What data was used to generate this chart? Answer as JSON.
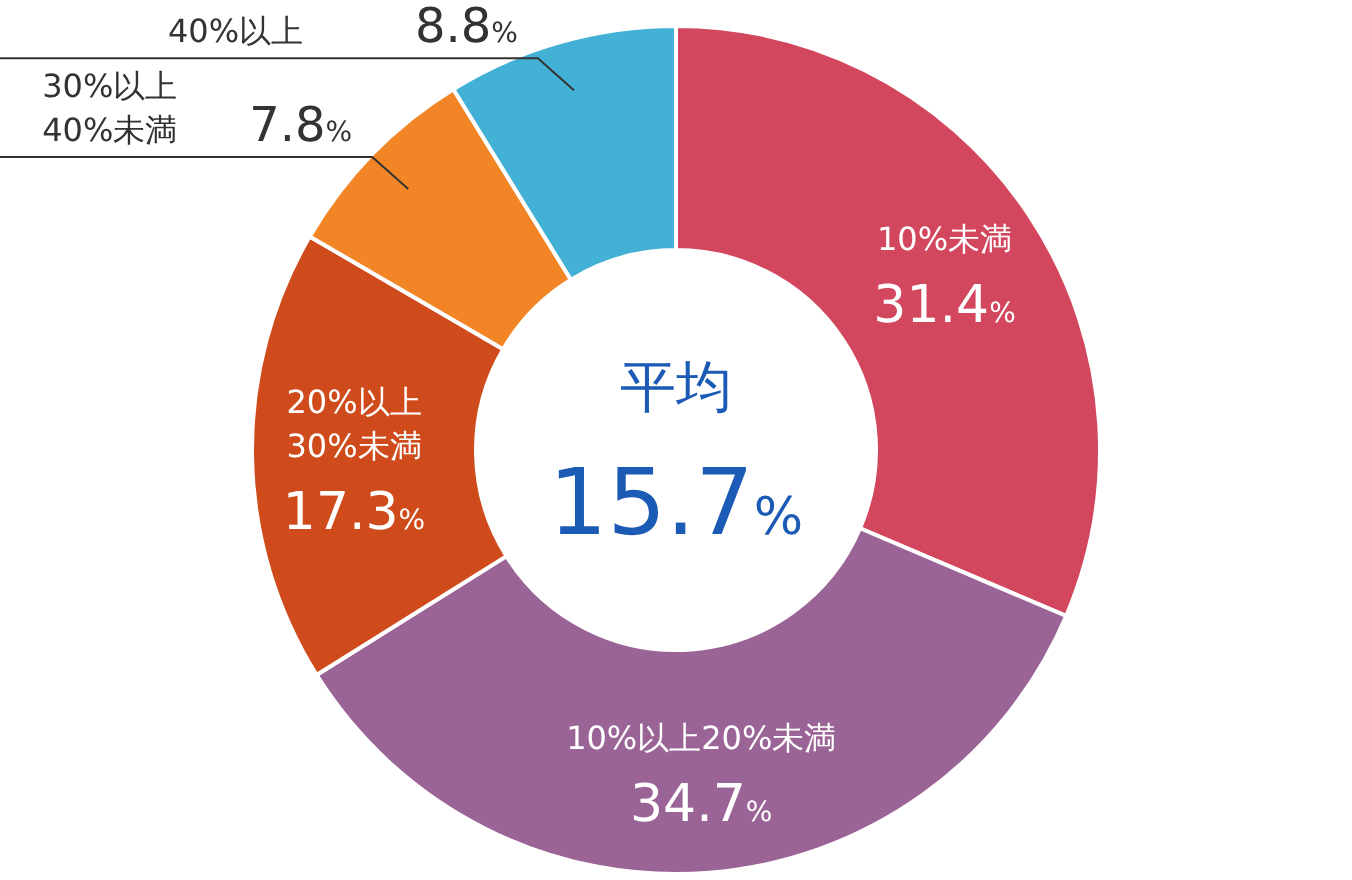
{
  "chart_data": {
    "type": "donut",
    "title": "平均",
    "annotations": [
      "15.7%"
    ],
    "categories": [
      "10%未満",
      "10%以上20%未満",
      "20%以上\n30%未満",
      "30%以上\n40%未満",
      "40%以上"
    ],
    "values": [
      31.4,
      34.7,
      17.3,
      7.8,
      8.8
    ],
    "colors": [
      "#d3475e",
      "#9b6496",
      "#cf4b1b",
      "#f28627",
      "#43b0d5"
    ],
    "value_labels": [
      "31.4%",
      "34.7%",
      "17.3%",
      "7.8%",
      "8.8%"
    ]
  }
}
